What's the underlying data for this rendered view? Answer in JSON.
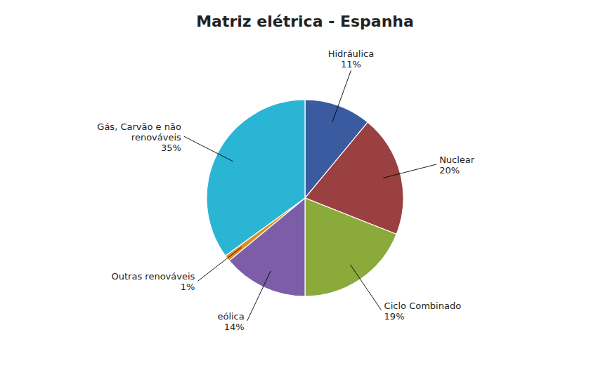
{
  "chart_data": {
    "type": "pie",
    "title": "Matriz elétrica - Espanha",
    "categories": [
      "Hidráulica",
      "Nuclear",
      "Ciclo Combinado",
      "eólica",
      "Outras renováveis",
      "Gás, Carvão e não\nrenováveis"
    ],
    "values": [
      11,
      20,
      19,
      14,
      1,
      35
    ],
    "value_labels": [
      "11%",
      "20%",
      "19%",
      "14%",
      "1%",
      "35%"
    ],
    "colors": [
      "#3A5BA0",
      "#9B4040",
      "#8AAA3A",
      "#7B5EA7",
      "#E08C20",
      "#2BB5D5"
    ],
    "data_labels": true
  }
}
